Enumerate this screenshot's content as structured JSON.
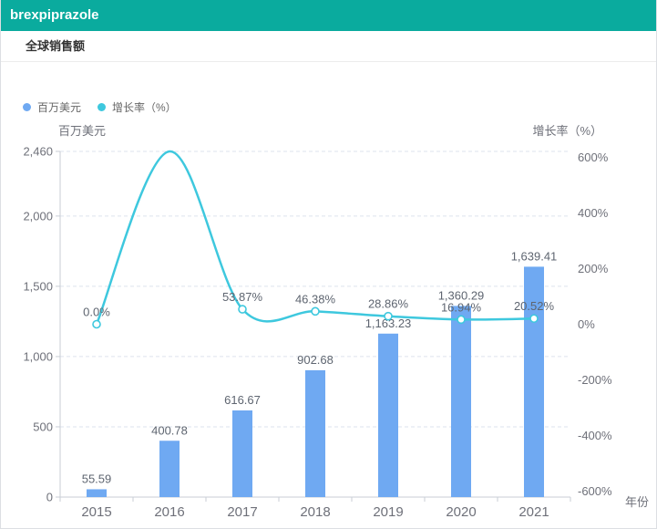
{
  "window": {
    "title": "brexpiprazole"
  },
  "section": {
    "title": "全球销售额"
  },
  "colors": {
    "header_bg": "#0AAB9E",
    "bar": "#6FA9F2",
    "line": "#3EC8DE",
    "grid": "#DDE3ED",
    "axis": "#C9CED6",
    "tick_label": "#6E7079",
    "value_label": "#5E6570",
    "section_title": "#333333"
  },
  "legend": {
    "position": "top-left",
    "items": [
      {
        "label": "百万美元",
        "color": "#6FA9F2"
      },
      {
        "label": "增长率（%）",
        "color": "#3EC8DE"
      }
    ]
  },
  "chart_data": {
    "type": "bar",
    "title": "全球销售额",
    "categories": [
      "2015",
      "2016",
      "2017",
      "2018",
      "2019",
      "2020",
      "2021"
    ],
    "xlabel": "年份",
    "grid": "dashed-horizontal",
    "legend_position": "top-left",
    "series": [
      {
        "name": "百万美元",
        "type": "bar",
        "axis": "left",
        "values": [
          55.59,
          400.78,
          616.67,
          902.68,
          1163.23,
          1360.29,
          1639.41
        ],
        "labels": [
          "55.59",
          "400.78",
          "616.67",
          "902.68",
          "1,163.23",
          "1,360.29",
          "1,639.41"
        ]
      },
      {
        "name": "增长率（%）",
        "type": "line",
        "axis": "right",
        "smooth": true,
        "values": [
          0.0,
          620.93,
          53.87,
          46.38,
          28.86,
          16.94,
          20.52
        ],
        "labels": [
          "0.0%",
          "",
          "53.87%",
          "46.38%",
          "28.86%",
          "16.94%",
          "20.52%"
        ],
        "markers": [
          true,
          false,
          true,
          true,
          true,
          true,
          true
        ]
      }
    ],
    "y_left": {
      "name": "百万美元",
      "min": 0,
      "max": 2460,
      "ticks": [
        0,
        500,
        1000,
        1500,
        2000,
        2460
      ],
      "tick_labels": [
        "0",
        "500",
        "1,000",
        "1,500",
        "2,000",
        "2,460"
      ]
    },
    "y_right": {
      "name": "增长率（%）",
      "min": -620.93,
      "max": 620.93,
      "ticks": [
        -600,
        -400,
        -200,
        0,
        200,
        400,
        600
      ],
      "tick_labels": [
        "-600%",
        "-400%",
        "-200%",
        "0%",
        "200%",
        "400%",
        "600%"
      ]
    }
  }
}
